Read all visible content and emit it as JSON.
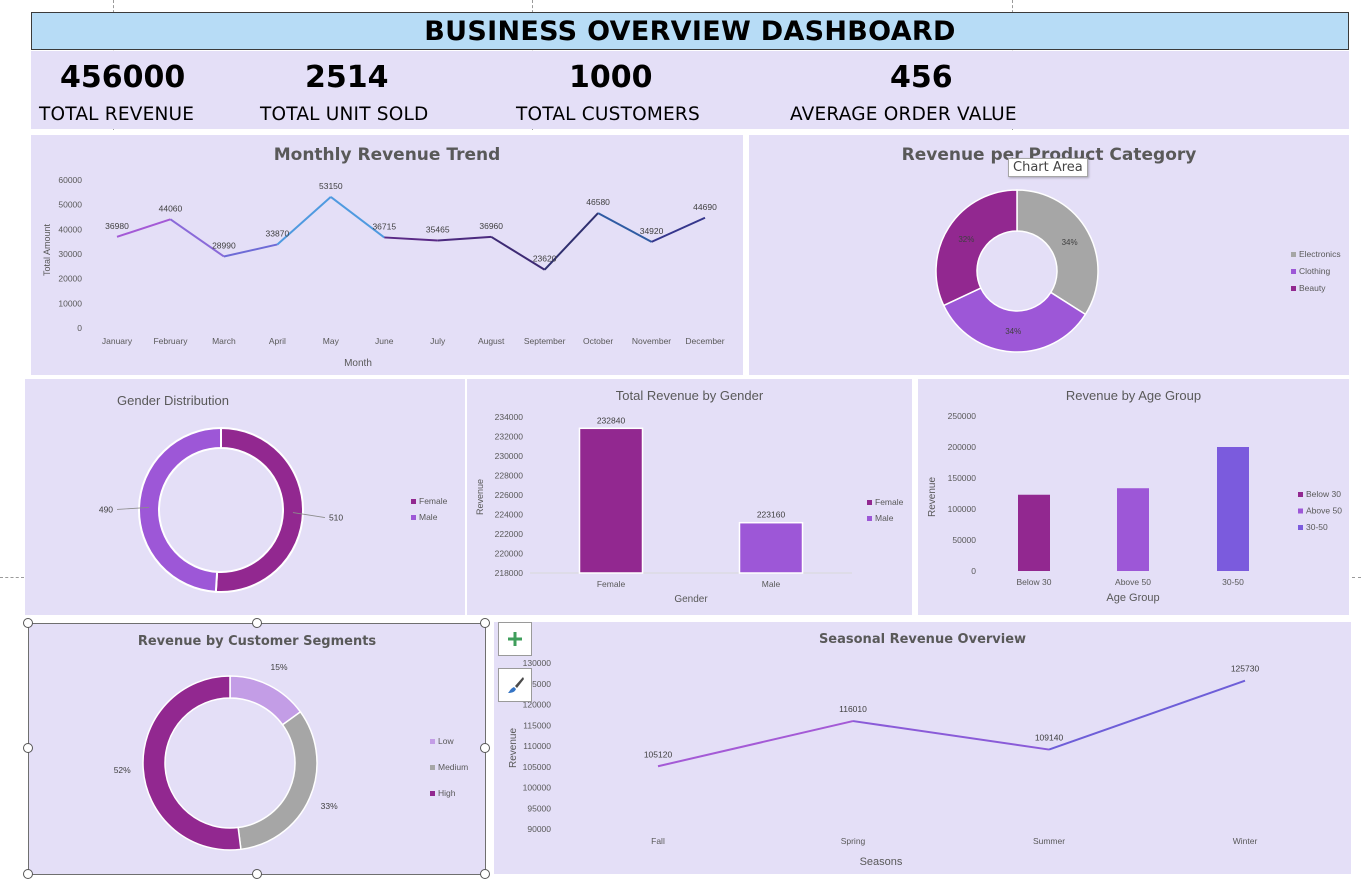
{
  "dashboard": {
    "title": "BUSINESS OVERVIEW DASHBOARD"
  },
  "kpis": [
    {
      "value": "456000",
      "label": "TOTAL REVENUE"
    },
    {
      "value": "2514",
      "label": "TOTAL UNIT SOLD"
    },
    {
      "value": "1000",
      "label": "TOTAL CUSTOMERS"
    },
    {
      "value": "456",
      "label": "AVERAGE ORDER VALUE"
    }
  ],
  "tooltip": {
    "text": "Chart Area"
  },
  "icons": {
    "add": "plus-icon",
    "style": "paintbrush-icon"
  },
  "colors": {
    "title_bar": "#b7dcf6",
    "panel": "#e4dff7",
    "dark_purple": "#922890",
    "purple": "#9d57d7",
    "light_purple": "#c39de6",
    "gray": "#a6a6a6",
    "blue_violet": "#7b5bdd"
  },
  "chart_data": [
    {
      "type": "line",
      "title": "Monthly Revenue Trend",
      "xlabel": "Month",
      "ylabel": "Total Amount",
      "categories": [
        "January",
        "February",
        "March",
        "April",
        "May",
        "June",
        "July",
        "August",
        "September",
        "October",
        "November",
        "December"
      ],
      "values": [
        36980,
        44060,
        28990,
        33870,
        53150,
        36715,
        35465,
        36960,
        23620,
        46580,
        34920,
        44690
      ],
      "data_labels": [
        "36980",
        "44060",
        "28990",
        "33870",
        "53150",
        "36715",
        "35465",
        "36960",
        "23620",
        "46580",
        "34920",
        "44690"
      ],
      "ylim": [
        0,
        60000
      ],
      "yticks": [
        "0",
        "10000",
        "20000",
        "30000",
        "40000",
        "50000",
        "60000"
      ],
      "segment_colors": [
        "#a45ad6",
        "#8a6ad9",
        "#6e6bd6",
        "#4f9ae0",
        "#4f9ae0",
        "#5a2a86",
        "#4b2a7e",
        "#3d2a74",
        "#2f2f6f",
        "#2f5ba3",
        "#35368c",
        "#3144a0"
      ]
    },
    {
      "type": "pie",
      "title": "Revenue per Product Category",
      "categories": [
        "Electronics",
        "Clothing",
        "Beauty"
      ],
      "values": [
        34,
        34,
        32
      ],
      "data_labels": [
        "34%",
        "34%",
        "32%"
      ],
      "colors": [
        "#a6a6a6",
        "#9d57d7",
        "#922890"
      ],
      "legend": "right"
    },
    {
      "type": "pie",
      "title": "Gender Distribution",
      "categories": [
        "Female",
        "Male"
      ],
      "values": [
        510,
        490
      ],
      "data_labels": [
        "510",
        "490"
      ],
      "colors": [
        "#922890",
        "#9d57d7"
      ],
      "legend": "right"
    },
    {
      "type": "bar",
      "title": "Total Revenue by Gender",
      "xlabel": "Gender",
      "ylabel": "Revenue",
      "categories": [
        "Female",
        "Male"
      ],
      "values": [
        232840,
        223160
      ],
      "data_labels": [
        "232840",
        "223160"
      ],
      "ylim": [
        218000,
        234000
      ],
      "yticks": [
        "218000",
        "220000",
        "222000",
        "224000",
        "226000",
        "228000",
        "230000",
        "232000",
        "234000"
      ],
      "colors": [
        "#922890",
        "#9d57d7"
      ],
      "legend_entries": [
        "Female",
        "Male"
      ]
    },
    {
      "type": "bar",
      "title": "Revenue by Age Group",
      "xlabel": "Age Group",
      "ylabel": "Revenue",
      "categories": [
        "Below 30",
        "Above 50",
        "30-50"
      ],
      "values": [
        123000,
        133500,
        200000
      ],
      "ylim": [
        0,
        250000
      ],
      "yticks": [
        "0",
        "50000",
        "100000",
        "150000",
        "200000",
        "250000"
      ],
      "colors": [
        "#922890",
        "#9d57d7",
        "#7b5bdd"
      ],
      "legend_entries": [
        "Below 30",
        "Above 50",
        "30-50"
      ]
    },
    {
      "type": "pie",
      "title": "Revenue by Customer Segments",
      "categories": [
        "Low",
        "Medium",
        "High"
      ],
      "values": [
        15,
        33,
        52
      ],
      "data_labels": [
        "15%",
        "33%",
        "52%"
      ],
      "colors": [
        "#c39de6",
        "#a6a6a6",
        "#922890"
      ],
      "legend": "right"
    },
    {
      "type": "line",
      "title": "Seasonal Revenue Overview",
      "xlabel": "Seasons",
      "ylabel": "Revenue",
      "categories": [
        "Fall",
        "Spring",
        "Summer",
        "Winter"
      ],
      "values": [
        105120,
        116010,
        109140,
        125730
      ],
      "data_labels": [
        "105120",
        "116010",
        "109140",
        "125730"
      ],
      "ylim": [
        90000,
        130000
      ],
      "yticks": [
        "90000",
        "95000",
        "100000",
        "105000",
        "110000",
        "115000",
        "120000",
        "125000",
        "130000"
      ],
      "segment_colors": [
        "#a45ad6",
        "#8a5bd8",
        "#6e5ed8"
      ]
    }
  ]
}
